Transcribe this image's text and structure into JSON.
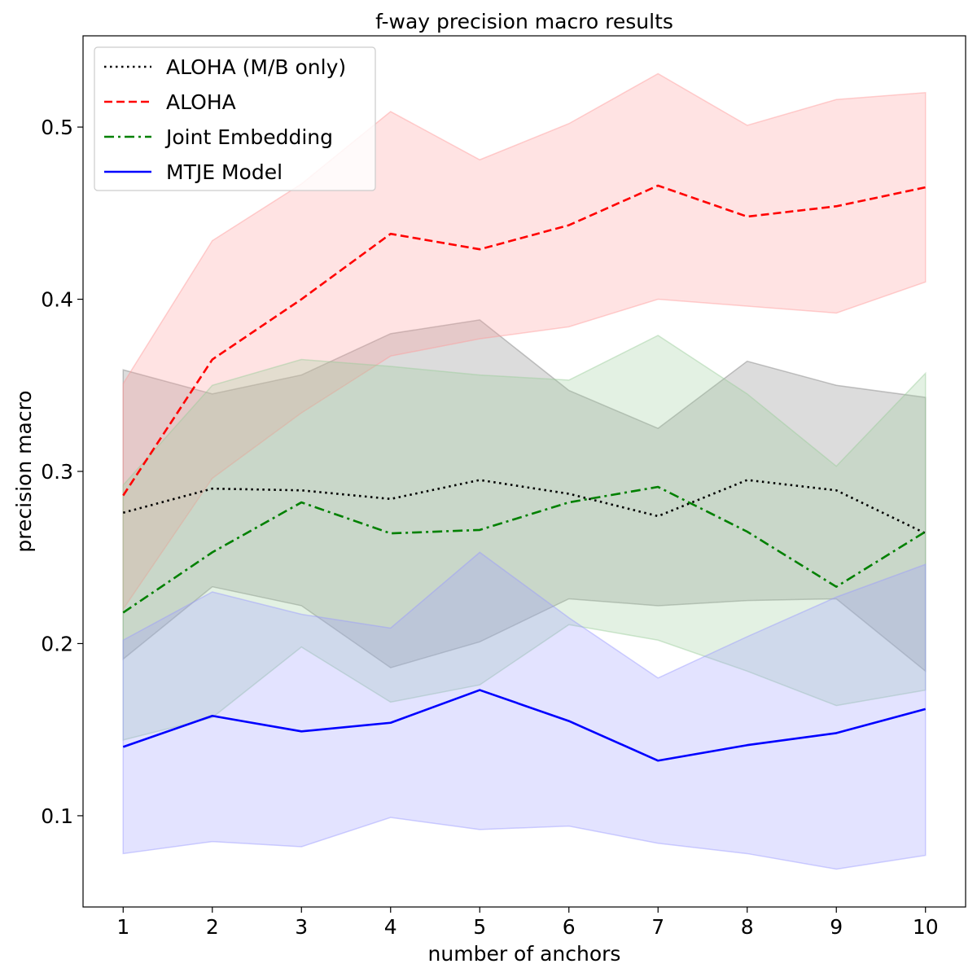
{
  "chart_data": {
    "type": "line",
    "title": "f-way precision macro results",
    "xlabel": "number of anchors",
    "ylabel": "precision macro",
    "x": [
      1,
      2,
      3,
      4,
      5,
      6,
      7,
      8,
      9,
      10
    ],
    "xlim": [
      0.55,
      10.45
    ],
    "ylim": [
      0.047,
      0.553
    ],
    "xticks": [
      1,
      2,
      3,
      4,
      5,
      6,
      7,
      8,
      9,
      10
    ],
    "yticks": [
      0.1,
      0.2,
      0.3,
      0.4,
      0.5
    ],
    "grid": false,
    "legend_position": "top-left",
    "series": [
      {
        "name": "ALOHA (M/B only)",
        "style": "dotted",
        "color": "#000000",
        "band_color": "#808080",
        "values": [
          0.276,
          0.29,
          0.289,
          0.284,
          0.295,
          0.287,
          0.274,
          0.295,
          0.289,
          0.264
        ],
        "lower": [
          0.191,
          0.233,
          0.222,
          0.186,
          0.201,
          0.226,
          0.222,
          0.225,
          0.226,
          0.184
        ],
        "upper": [
          0.359,
          0.345,
          0.356,
          0.38,
          0.388,
          0.347,
          0.325,
          0.364,
          0.35,
          0.343
        ]
      },
      {
        "name": "ALOHA",
        "style": "dashed",
        "color": "#ff0000",
        "band_color": "#ff9999",
        "values": [
          0.286,
          0.365,
          0.4,
          0.438,
          0.429,
          0.443,
          0.466,
          0.448,
          0.454,
          0.465
        ],
        "lower": [
          0.22,
          0.296,
          0.334,
          0.367,
          0.377,
          0.384,
          0.4,
          0.396,
          0.392,
          0.41
        ],
        "upper": [
          0.351,
          0.434,
          0.467,
          0.509,
          0.481,
          0.502,
          0.531,
          0.501,
          0.516,
          0.52
        ]
      },
      {
        "name": "Joint Embedding",
        "style": "dashdot",
        "color": "#008000",
        "band_color": "#99cc99",
        "values": [
          0.218,
          0.253,
          0.282,
          0.264,
          0.266,
          0.282,
          0.291,
          0.265,
          0.233,
          0.265
        ],
        "lower": [
          0.144,
          0.157,
          0.198,
          0.166,
          0.176,
          0.211,
          0.202,
          0.184,
          0.164,
          0.173
        ],
        "upper": [
          0.292,
          0.35,
          0.365,
          0.361,
          0.356,
          0.353,
          0.379,
          0.345,
          0.303,
          0.357
        ]
      },
      {
        "name": "MTJE Model",
        "style": "solid",
        "color": "#0000ff",
        "band_color": "#9999ff",
        "values": [
          0.14,
          0.158,
          0.149,
          0.154,
          0.173,
          0.155,
          0.132,
          0.141,
          0.148,
          0.162
        ],
        "lower": [
          0.078,
          0.085,
          0.082,
          0.099,
          0.092,
          0.094,
          0.084,
          0.078,
          0.069,
          0.077
        ],
        "upper": [
          0.202,
          0.23,
          0.217,
          0.209,
          0.253,
          0.215,
          0.18,
          0.204,
          0.227,
          0.246
        ]
      }
    ]
  }
}
